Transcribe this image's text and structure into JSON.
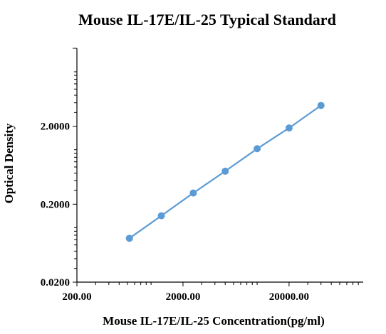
{
  "chart_data": {
    "type": "line",
    "title": "Mouse IL-17E/IL-25 Typical Standard",
    "xlabel": "Mouse IL-17E/IL-25  Concentration(pg/ml)",
    "ylabel": "Optical Density",
    "x_scale": "log",
    "y_scale": "log",
    "xlim": [
      200,
      100000
    ],
    "ylim": [
      0.02,
      20
    ],
    "x_ticks": [
      {
        "value": 200,
        "label": "200.00"
      },
      {
        "value": 2000,
        "label": "2000.00"
      },
      {
        "value": 20000,
        "label": "20000.00"
      }
    ],
    "y_ticks": [
      {
        "value": 0.02,
        "label": "0.0200"
      },
      {
        "value": 0.2,
        "label": "0.2000"
      },
      {
        "value": 2,
        "label": "2.0000"
      }
    ],
    "series": [
      {
        "x": [
          625,
          1250,
          2500,
          5000,
          10000,
          20000,
          40000
        ],
        "y": [
          0.073,
          0.142,
          0.278,
          0.53,
          1.03,
          1.9,
          3.7
        ],
        "color": "#5b9bd5",
        "marker": "circle"
      }
    ],
    "grid": false,
    "legend": "none"
  }
}
